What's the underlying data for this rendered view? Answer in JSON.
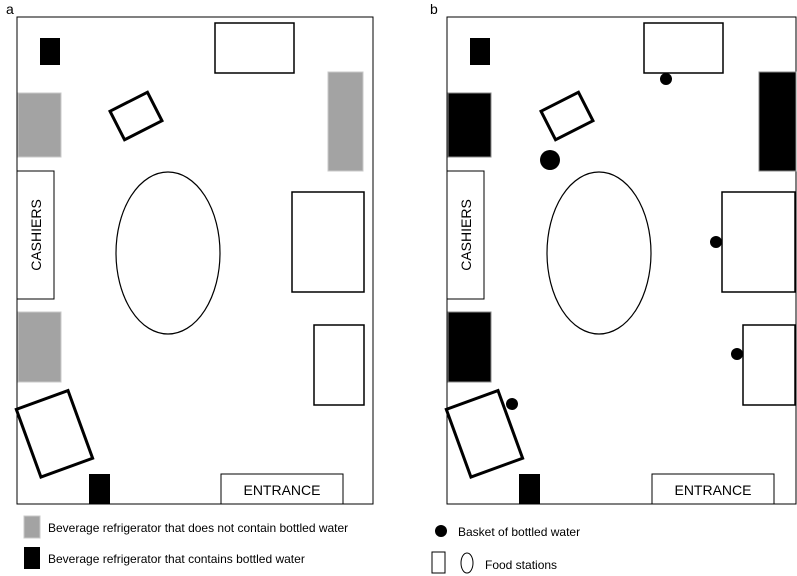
{
  "panels": {
    "a": {
      "letter": "a",
      "cashiers_label": "CASHIERS",
      "entrance_label": "ENTRANCE"
    },
    "b": {
      "letter": "b",
      "cashiers_label": "CASHIERS",
      "entrance_label": "ENTRANCE"
    }
  },
  "legend": {
    "gray_fridge": "Beverage refrigerator that does not contain bottled water",
    "black_fridge": "Beverage refrigerator that contains bottled water",
    "basket": "Basket of bottled water",
    "food_stations": "Food stations"
  },
  "colors": {
    "gray_fridge_fill": "#a3a3a3",
    "gray_fridge_stroke": "#c8c8c8",
    "black_fill": "#000000",
    "outline": "#000000"
  }
}
